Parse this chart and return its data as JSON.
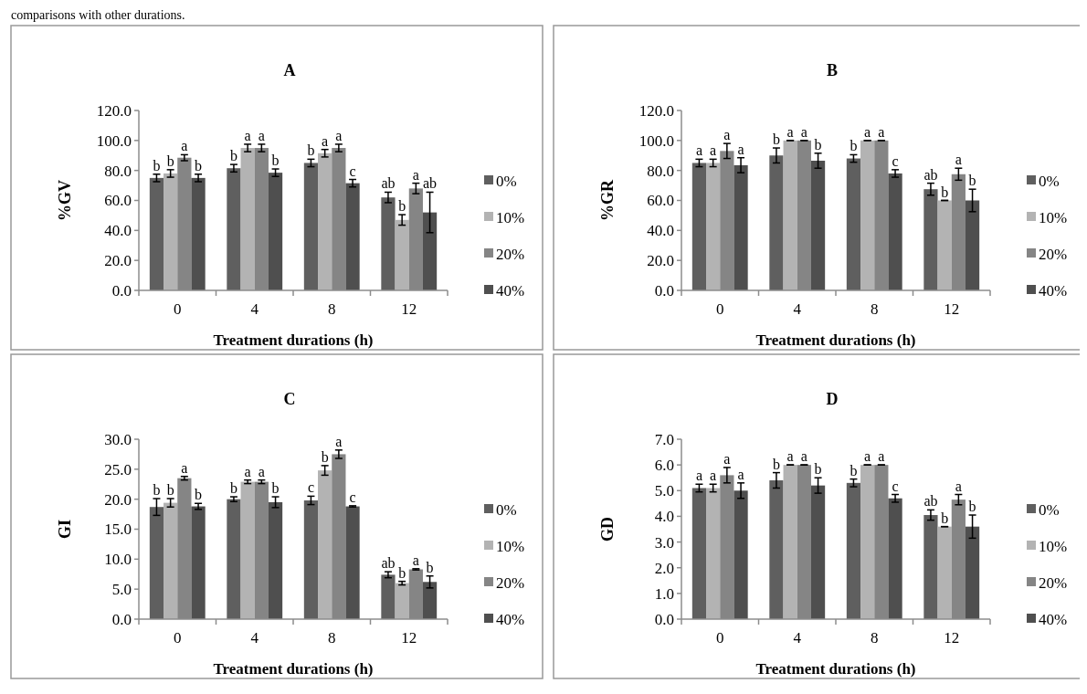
{
  "chart_data": [
    {
      "type": "bar",
      "title": "A",
      "xlabel": "Treatment durations (h)",
      "ylabel": "%GV",
      "categories": [
        "0",
        "4",
        "8",
        "12"
      ],
      "ylim": [
        0,
        120
      ],
      "yticks": [
        {
          "value": 0,
          "label": "0.0"
        },
        {
          "value": 20,
          "label": "20.0"
        },
        {
          "value": 40,
          "label": "40.0"
        },
        {
          "value": 60,
          "label": "60.0"
        },
        {
          "value": 80,
          "label": "80.0"
        },
        {
          "value": 100,
          "label": "100.0"
        },
        {
          "value": 120,
          "label": "120.0"
        }
      ],
      "legend": "right",
      "series": [
        {
          "name": "0%",
          "color": "#5f5f5f",
          "values": [
            75,
            81.5,
            85,
            62
          ],
          "errors": [
            2.5,
            2.5,
            2.5,
            3.5
          ]
        },
        {
          "name": "10%",
          "color": "#b3b3b3",
          "values": [
            78,
            95,
            91.5,
            47
          ],
          "errors": [
            2.5,
            2.5,
            2.5,
            3.5
          ]
        },
        {
          "name": "20%",
          "color": "#858585",
          "values": [
            88.5,
            95,
            95,
            68
          ],
          "errors": [
            2,
            2.5,
            2.5,
            3.5
          ]
        },
        {
          "name": "40%",
          "color": "#4f4f4f",
          "values": [
            75,
            78.5,
            71.5,
            52
          ],
          "errors": [
            2.5,
            2.5,
            2.5,
            13.5
          ]
        }
      ],
      "annotations": [
        "comparisons with other durations.",
        {
          "text": "b",
          "x": "0",
          "y": 77.5
        },
        {
          "text": "b",
          "x": "0",
          "y": 80.5
        },
        {
          "text": "a",
          "x": "0",
          "y": 90.5
        },
        {
          "text": "b",
          "x": "0",
          "y": 77.5
        },
        {
          "text": "b",
          "x": "4",
          "y": 84
        },
        {
          "text": "a",
          "x": "4",
          "y": 97.5
        },
        {
          "text": "a",
          "x": "4",
          "y": 97.5
        },
        {
          "text": "b",
          "x": "4",
          "y": 81
        },
        {
          "text": "b",
          "x": "8",
          "y": 87.5
        },
        {
          "text": "a",
          "x": "8",
          "y": 94
        },
        {
          "text": "a",
          "x": "8",
          "y": 97.5
        },
        {
          "text": "c",
          "x": "8",
          "y": 74
        },
        {
          "text": "ab",
          "x": "12",
          "y": 65.5
        },
        {
          "text": "b",
          "x": "12",
          "y": 50.5
        },
        {
          "text": "a",
          "x": "12",
          "y": 71.5
        },
        {
          "text": "ab",
          "x": "12",
          "y": 65.5
        }
      ]
    },
    {
      "type": "bar",
      "title": "B",
      "xlabel": "Treatment durations (h)",
      "ylabel": "%GR",
      "categories": [
        "0",
        "4",
        "8",
        "12"
      ],
      "ylim": [
        0,
        120
      ],
      "yticks": [
        {
          "value": 0,
          "label": "0.0"
        },
        {
          "value": 20,
          "label": "20.0"
        },
        {
          "value": 40,
          "label": "40.0"
        },
        {
          "value": 60,
          "label": "60.0"
        },
        {
          "value": 80,
          "label": "80.0"
        },
        {
          "value": 100,
          "label": "100.0"
        },
        {
          "value": 120,
          "label": "120.0"
        }
      ],
      "legend": "right",
      "series": [
        {
          "name": "0%",
          "color": "#5f5f5f",
          "values": [
            85,
            90,
            88,
            67.5
          ],
          "errors": [
            2.5,
            5,
            2.5,
            4
          ]
        },
        {
          "name": "10%",
          "color": "#b3b3b3",
          "values": [
            85,
            100,
            100,
            60
          ],
          "errors": [
            2.5,
            0,
            0,
            0
          ]
        },
        {
          "name": "20%",
          "color": "#858585",
          "values": [
            93,
            100,
            100,
            77.5
          ],
          "errors": [
            5,
            0,
            0,
            4
          ]
        },
        {
          "name": "40%",
          "color": "#4f4f4f",
          "values": [
            83.5,
            86.5,
            78,
            60
          ],
          "errors": [
            5,
            5,
            2.5,
            7.5
          ]
        }
      ],
      "annotations": [
        {
          "text": "a",
          "x": "0",
          "y": 87.5
        },
        {
          "text": "a",
          "x": "0",
          "y": 87.5
        },
        {
          "text": "a",
          "x": "0",
          "y": 98
        },
        {
          "text": "a",
          "x": "0",
          "y": 88.5
        },
        {
          "text": "b",
          "x": "4",
          "y": 95
        },
        {
          "text": "a",
          "x": "4",
          "y": 100
        },
        {
          "text": "a",
          "x": "4",
          "y": 100
        },
        {
          "text": "b",
          "x": "4",
          "y": 91.5
        },
        {
          "text": "b",
          "x": "8",
          "y": 90.5
        },
        {
          "text": "a",
          "x": "8",
          "y": 100
        },
        {
          "text": "a",
          "x": "8",
          "y": 100
        },
        {
          "text": "c",
          "x": "8",
          "y": 80.5
        },
        {
          "text": "ab",
          "x": "12",
          "y": 71.5
        },
        {
          "text": "b",
          "x": "12",
          "y": 60
        },
        {
          "text": "a",
          "x": "12",
          "y": 81.5
        },
        {
          "text": "b",
          "x": "12",
          "y": 67.5
        }
      ]
    },
    {
      "type": "bar",
      "title": "C",
      "xlabel": "Treatment durations (h)",
      "ylabel": "GI",
      "categories": [
        "0",
        "4",
        "8",
        "12"
      ],
      "ylim": [
        0,
        30
      ],
      "yticks": [
        {
          "value": 0,
          "label": "0.0"
        },
        {
          "value": 5,
          "label": "5.0"
        },
        {
          "value": 10,
          "label": "10.0"
        },
        {
          "value": 15,
          "label": "15.0"
        },
        {
          "value": 20,
          "label": "20.0"
        },
        {
          "value": 25,
          "label": "25.0"
        },
        {
          "value": 30,
          "label": "30.0"
        }
      ],
      "legend": "right",
      "series": [
        {
          "name": "0%",
          "color": "#5f5f5f",
          "values": [
            18.7,
            20,
            19.8,
            7.4
          ],
          "errors": [
            1.4,
            0.4,
            0.7,
            0.5
          ]
        },
        {
          "name": "10%",
          "color": "#b3b3b3",
          "values": [
            19.4,
            22.9,
            24.8,
            6
          ],
          "errors": [
            0.7,
            0.3,
            0.8,
            0.3
          ]
        },
        {
          "name": "20%",
          "color": "#858585",
          "values": [
            23.5,
            22.9,
            27.5,
            8.3
          ],
          "errors": [
            0.3,
            0.3,
            0.7,
            0.1
          ]
        },
        {
          "name": "40%",
          "color": "#4f4f4f",
          "values": [
            18.8,
            19.5,
            18.8,
            6.2
          ],
          "errors": [
            0.5,
            0.9,
            0.1,
            1
          ]
        }
      ],
      "annotations": [
        {
          "text": "b",
          "x": "0",
          "y": 20.1
        },
        {
          "text": "b",
          "x": "0",
          "y": 20.1
        },
        {
          "text": "a",
          "x": "0",
          "y": 23.8
        },
        {
          "text": "b",
          "x": "0",
          "y": 19.3
        },
        {
          "text": "b",
          "x": "4",
          "y": 20.4
        },
        {
          "text": "a",
          "x": "4",
          "y": 23.2
        },
        {
          "text": "a",
          "x": "4",
          "y": 23.2
        },
        {
          "text": "b",
          "x": "4",
          "y": 20.4
        },
        {
          "text": "c",
          "x": "8",
          "y": 20.5
        },
        {
          "text": "b",
          "x": "8",
          "y": 25.6
        },
        {
          "text": "a",
          "x": "8",
          "y": 28.2
        },
        {
          "text": "c",
          "x": "8",
          "y": 18.9
        },
        {
          "text": "ab",
          "x": "12",
          "y": 7.9
        },
        {
          "text": "b",
          "x": "12",
          "y": 6.3
        },
        {
          "text": "a",
          "x": "12",
          "y": 8.4
        },
        {
          "text": "b",
          "x": "12",
          "y": 7.2
        }
      ]
    },
    {
      "type": "bar",
      "title": "D",
      "xlabel": "Treatment durations (h)",
      "ylabel": "GD",
      "categories": [
        "0",
        "4",
        "8",
        "12"
      ],
      "ylim": [
        0,
        7
      ],
      "yticks": [
        {
          "value": 0,
          "label": "0.0"
        },
        {
          "value": 1,
          "label": "1.0"
        },
        {
          "value": 2,
          "label": "2.0"
        },
        {
          "value": 3,
          "label": "3.0"
        },
        {
          "value": 4,
          "label": "4.0"
        },
        {
          "value": 5,
          "label": "5.0"
        },
        {
          "value": 6,
          "label": "6.0"
        },
        {
          "value": 7,
          "label": "7.0"
        }
      ],
      "legend": "right",
      "series": [
        {
          "name": "0%",
          "color": "#5f5f5f",
          "values": [
            5.1,
            5.4,
            5.3,
            4.05
          ],
          "errors": [
            0.15,
            0.3,
            0.15,
            0.2
          ]
        },
        {
          "name": "10%",
          "color": "#b3b3b3",
          "values": [
            5.1,
            6,
            6,
            3.6
          ],
          "errors": [
            0.15,
            0,
            0,
            0
          ]
        },
        {
          "name": "20%",
          "color": "#858585",
          "values": [
            5.6,
            6,
            6,
            4.65
          ],
          "errors": [
            0.3,
            0,
            0,
            0.2
          ]
        },
        {
          "name": "40%",
          "color": "#4f4f4f",
          "values": [
            5,
            5.2,
            4.7,
            3.6
          ],
          "errors": [
            0.3,
            0.3,
            0.15,
            0.45
          ]
        }
      ],
      "annotations": [
        {
          "text": "a",
          "x": "0",
          "y": 5.25
        },
        {
          "text": "a",
          "x": "0",
          "y": 5.25
        },
        {
          "text": "a",
          "x": "0",
          "y": 5.9
        },
        {
          "text": "a",
          "x": "0",
          "y": 5.3
        },
        {
          "text": "b",
          "x": "4",
          "y": 5.7
        },
        {
          "text": "a",
          "x": "4",
          "y": 6
        },
        {
          "text": "a",
          "x": "4",
          "y": 6
        },
        {
          "text": "b",
          "x": "4",
          "y": 5.5
        },
        {
          "text": "b",
          "x": "8",
          "y": 5.45
        },
        {
          "text": "a",
          "x": "8",
          "y": 6
        },
        {
          "text": "a",
          "x": "8",
          "y": 6
        },
        {
          "text": "c",
          "x": "8",
          "y": 4.85
        },
        {
          "text": "ab",
          "x": "12",
          "y": 4.25
        },
        {
          "text": "b",
          "x": "12",
          "y": 3.6
        },
        {
          "text": "a",
          "x": "12",
          "y": 4.85
        },
        {
          "text": "b",
          "x": "12",
          "y": 4.05
        }
      ]
    }
  ]
}
